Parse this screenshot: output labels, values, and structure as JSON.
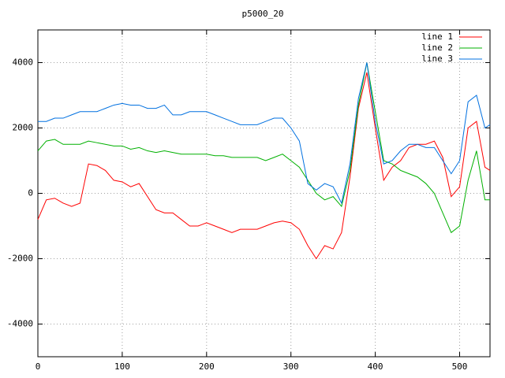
{
  "chart_data": {
    "type": "line",
    "title": "p5000_20",
    "x": [
      0,
      10,
      20,
      30,
      40,
      50,
      60,
      70,
      80,
      90,
      100,
      110,
      120,
      130,
      140,
      150,
      160,
      170,
      180,
      190,
      200,
      210,
      220,
      230,
      240,
      250,
      260,
      270,
      280,
      290,
      300,
      310,
      320,
      330,
      340,
      350,
      360,
      370,
      380,
      390,
      400,
      410,
      420,
      430,
      440,
      450,
      460,
      470,
      480,
      490,
      500,
      510,
      520,
      530,
      536
    ],
    "series": [
      {
        "name": "line 1",
        "color": "#ff0000",
        "values": [
          -800,
          -200,
          -150,
          -300,
          -400,
          -300,
          900,
          850,
          700,
          400,
          350,
          200,
          300,
          -100,
          -500,
          -600,
          -600,
          -800,
          -1000,
          -1000,
          -900,
          -1000,
          -1100,
          -1200,
          -1100,
          -1100,
          -1100,
          -1000,
          -900,
          -850,
          -900,
          -1100,
          -1600,
          -2000,
          -1600,
          -1700,
          -1200,
          500,
          2600,
          3700,
          2000,
          400,
          800,
          1000,
          1400,
          1500,
          1500,
          1600,
          1100,
          -100,
          200,
          2000,
          2200,
          800,
          700
        ]
      },
      {
        "name": "line 2",
        "color": "#00b000",
        "values": [
          1300,
          1600,
          1650,
          1500,
          1500,
          1500,
          1600,
          1550,
          1500,
          1450,
          1450,
          1350,
          1400,
          1300,
          1250,
          1300,
          1250,
          1200,
          1200,
          1200,
          1200,
          1150,
          1150,
          1100,
          1100,
          1100,
          1100,
          1000,
          1100,
          1200,
          1000,
          800,
          400,
          0,
          -200,
          -100,
          -400,
          700,
          2700,
          4000,
          2500,
          1000,
          900,
          700,
          600,
          500,
          300,
          0,
          -600,
          -1200,
          -1000,
          400,
          1300,
          -200,
          -200
        ]
      },
      {
        "name": "line 3",
        "color": "#0070e0",
        "values": [
          2200,
          2200,
          2300,
          2300,
          2400,
          2500,
          2500,
          2500,
          2600,
          2700,
          2750,
          2700,
          2700,
          2600,
          2600,
          2700,
          2400,
          2400,
          2500,
          2500,
          2500,
          2400,
          2300,
          2200,
          2100,
          2100,
          2100,
          2200,
          2300,
          2300,
          2000,
          1600,
          300,
          100,
          300,
          200,
          -300,
          900,
          2900,
          4000,
          2200,
          900,
          1000,
          1300,
          1500,
          1500,
          1400,
          1400,
          1000,
          600,
          1000,
          2800,
          3000,
          2000,
          2100
        ]
      }
    ],
    "xlim": [
      0,
      536
    ],
    "ylim": [
      -5000,
      5000
    ],
    "xticks": [
      0,
      100,
      200,
      300,
      400,
      500
    ],
    "yticks": [
      -4000,
      -2000,
      0,
      2000,
      4000
    ],
    "grid": true,
    "legend": "top-right"
  }
}
